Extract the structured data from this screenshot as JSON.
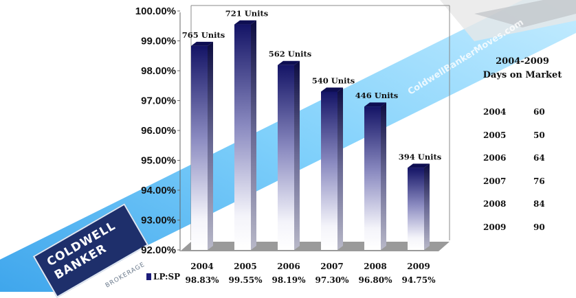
{
  "chart_data": {
    "type": "bar",
    "categories": [
      "2004",
      "2005",
      "2006",
      "2007",
      "2008",
      "2009"
    ],
    "series": [
      {
        "name": "LP:SP",
        "values": [
          98.83,
          99.55,
          98.19,
          97.3,
          96.8,
          94.75
        ],
        "value_labels": [
          "98.83%",
          "99.55%",
          "98.19%",
          "97.30%",
          "96.80%",
          "94.75%"
        ]
      }
    ],
    "units": [
      "765 Units",
      "721 Units",
      "562 Units",
      "540 Units",
      "446 Units",
      "394 Units"
    ],
    "ylim": [
      92,
      100
    ],
    "yticks": [
      "100.00%",
      "99.00%",
      "98.00%",
      "97.00%",
      "96.00%",
      "95.00%",
      "94.00%",
      "93.00%",
      "92.00%"
    ],
    "legend": {
      "label": "LP:SP",
      "placement": "bottom-left"
    },
    "grid": false,
    "bar_color": "#1c1c7a"
  },
  "days_on_market": {
    "title_line1": "2004-2009",
    "title_line2": "Days on Market",
    "rows": [
      {
        "year": "2004",
        "days": "60"
      },
      {
        "year": "2005",
        "days": "50"
      },
      {
        "year": "2006",
        "days": "64"
      },
      {
        "year": "2007",
        "days": "76"
      },
      {
        "year": "2008",
        "days": "84"
      },
      {
        "year": "2009",
        "days": "90"
      }
    ]
  },
  "branding": {
    "watermark": "ColdwellBankerMoves.com",
    "logo_line1": "COLDWELL",
    "logo_line2": "BANKER",
    "logo_sub": "BROKERAGE"
  }
}
